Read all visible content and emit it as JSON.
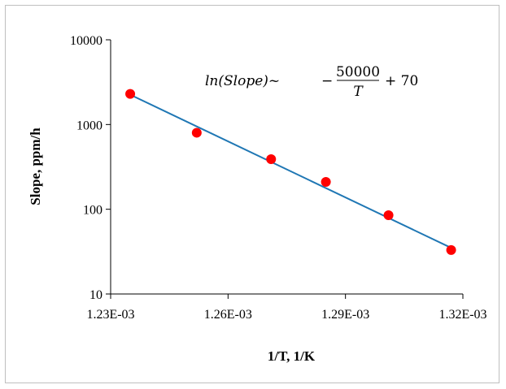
{
  "chart_data": {
    "type": "scatter",
    "title": "",
    "xlabel": "1/T, 1/K",
    "ylabel": "Slope, ppm/h",
    "xlim": [
      0.00123,
      0.00132
    ],
    "ylim": [
      10,
      10000
    ],
    "y_scale": "log",
    "grid": false,
    "legend": "none",
    "x_tick_labels": [
      "1.23E-03",
      "1.26E-03",
      "1.29E-03",
      "1.32E-03"
    ],
    "x_ticks": [
      0.00123,
      0.00126,
      0.00129,
      0.00132
    ],
    "y_tick_labels": [
      "10",
      "100",
      "1000",
      "10000"
    ],
    "y_ticks": [
      10,
      100,
      1000,
      10000
    ],
    "series": [
      {
        "kind": "points",
        "color": "#ff0000",
        "x": [
          0.001235,
          0.001252,
          0.001271,
          0.001285,
          0.001301,
          0.001317
        ],
        "y": [
          2300,
          800,
          390,
          210,
          85,
          33
        ]
      },
      {
        "kind": "fit-line",
        "color": "#1f77b4",
        "x": [
          0.001235,
          0.001317
        ],
        "y": [
          2250,
          35
        ]
      }
    ],
    "annotation": {
      "lhs": "ln(Slope)~",
      "minus": "−",
      "numerator": "50000",
      "denominator": "T",
      "rhs": "+ 70"
    }
  }
}
